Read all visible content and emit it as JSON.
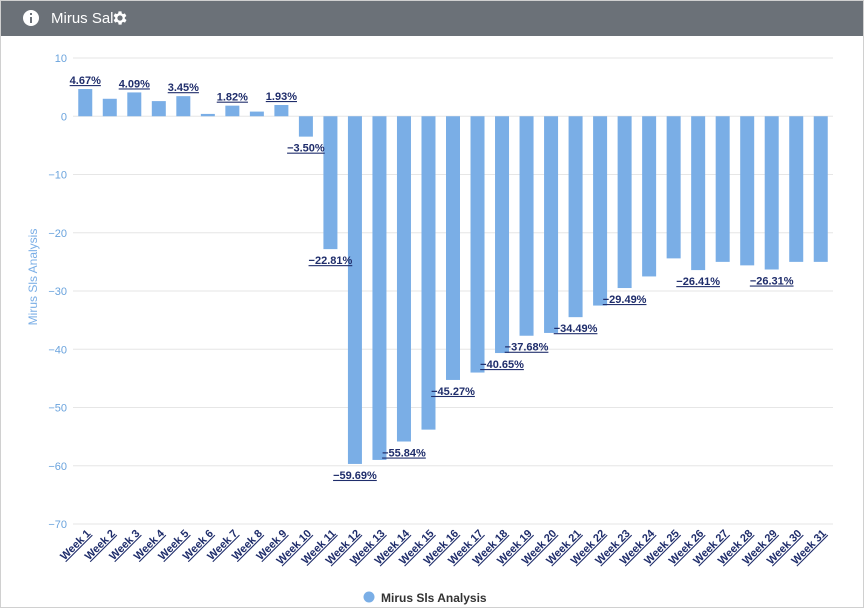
{
  "header": {
    "title": "Mirus Sal",
    "info_icon": "info-icon",
    "settings_icon": "gear-icon",
    "background": "#6b7178"
  },
  "chart_data": {
    "type": "bar",
    "ylabel": "Mirus Sls Analysis",
    "ylim": [
      -70,
      10
    ],
    "yticks": [
      10,
      0,
      -10,
      -20,
      -30,
      -40,
      -50,
      -60,
      -70
    ],
    "grid": true,
    "legend": {
      "position": "bottom-center",
      "label": "Mirus Sls Analysis"
    },
    "bar_color": "#7aaee6",
    "label_color": "#1f2d6b",
    "categories": [
      "Week 1",
      "Week 2",
      "Week 3",
      "Week 4",
      "Week 5",
      "Week 6",
      "Week 7",
      "Week 8",
      "Week 9",
      "Week 10",
      "Week 11",
      "Week 12",
      "Week 13",
      "Week 14",
      "Week 15",
      "Week 16",
      "Week 17",
      "Week 18",
      "Week 19",
      "Week 20",
      "Week 21",
      "Week 22",
      "Week 23",
      "Week 24",
      "Week 25",
      "Week 26",
      "Week 27",
      "Week 28",
      "Week 29",
      "Week 30",
      "Week 31"
    ],
    "series": [
      {
        "name": "Mirus Sls Analysis",
        "values": [
          4.67,
          3.0,
          4.09,
          2.6,
          3.45,
          0.4,
          1.82,
          0.8,
          1.93,
          -3.5,
          -22.81,
          -59.69,
          -59.0,
          -55.84,
          -53.8,
          -45.27,
          -44.0,
          -40.65,
          -37.68,
          -37.2,
          -34.49,
          -32.5,
          -29.49,
          -27.5,
          -24.4,
          -26.41,
          -25.0,
          -25.6,
          -26.31,
          -25.0,
          -25.0
        ],
        "data_labels": [
          "4.67%",
          null,
          "4.09%",
          null,
          "3.45%",
          null,
          "1.82%",
          null,
          "1.93%",
          "−3.50%",
          "−22.81%",
          "−59.69%",
          null,
          "−55.84%",
          null,
          "−45.27%",
          null,
          "−40.65%",
          "−37.68%",
          null,
          "−34.49%",
          null,
          "−29.49%",
          null,
          null,
          "−26.41%",
          null,
          null,
          "−26.31%",
          null,
          null
        ]
      }
    ]
  }
}
